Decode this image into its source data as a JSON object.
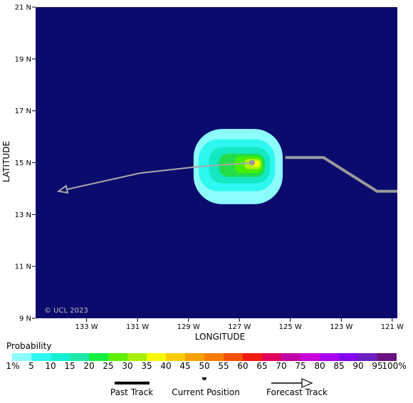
{
  "map": {
    "lat_ticks": [
      "21 N",
      "19 N",
      "17 N",
      "15 N",
      "13 N",
      "11 N",
      "9 N"
    ],
    "lon_ticks": [
      "133 W",
      "131 W",
      "129 W",
      "127 W",
      "125 W",
      "123 W",
      "121 W"
    ],
    "xlabel": "LONGITUDE",
    "ylabel": "LATITUDE",
    "credit": "© UCL 2023",
    "background_color": "#0b0b6e",
    "lon_range": [
      -135,
      -120.8
    ],
    "lat_range": [
      9,
      21
    ],
    "past_track": [
      [
        -125.2,
        15.2
      ],
      [
        -123.7,
        15.2
      ],
      [
        -121.6,
        13.9
      ],
      [
        -120.8,
        13.9
      ]
    ],
    "current_position": [
      -126.5,
      15.0
    ],
    "forecast_track": [
      [
        -126.5,
        15.0
      ],
      [
        -128.6,
        14.85
      ],
      [
        -130.9,
        14.6
      ],
      [
        -134.1,
        13.9
      ]
    ],
    "probability_field": [
      {
        "level": 1,
        "color": "#8cfcfc",
        "lon_min": -128.8,
        "lon_max": -125.3,
        "lat_min": 13.4,
        "lat_max": 16.3
      },
      {
        "level": 5,
        "color": "#2ef7f0",
        "lon_min": -128.6,
        "lon_max": -125.6,
        "lat_min": 13.9,
        "lat_max": 15.9
      },
      {
        "level": 10,
        "color": "#14e8c3",
        "lon_min": -128.2,
        "lon_max": -125.8,
        "lat_min": 14.2,
        "lat_max": 15.6
      },
      {
        "level": 20,
        "color": "#22dc4c",
        "lon_min": -127.8,
        "lon_max": -126.0,
        "lat_min": 14.45,
        "lat_max": 15.35
      },
      {
        "level": 25,
        "color": "#44ee00",
        "lon_min": -127.2,
        "lon_max": -126.1,
        "lat_min": 14.6,
        "lat_max": 15.25
      },
      {
        "level": 30,
        "color": "#aaf200",
        "lon_min": -126.8,
        "lon_max": -126.15,
        "lat_min": 14.75,
        "lat_max": 15.15
      },
      {
        "level": 35,
        "color": "#f8f800",
        "lon_min": -126.55,
        "lon_max": -126.2,
        "lat_min": 14.85,
        "lat_max": 15.08
      }
    ]
  },
  "legend": {
    "title": "Probability",
    "labels": [
      "1%",
      "5",
      "10",
      "15",
      "20",
      "25",
      "30",
      "35",
      "40",
      "45",
      "50",
      "55",
      "60",
      "65",
      "70",
      "75",
      "80",
      "85",
      "90",
      "95",
      "100%"
    ],
    "colors": [
      "#8cfcfc",
      "#2ef7f0",
      "#14f0d6",
      "#1ee8a8",
      "#14ee40",
      "#5cf000",
      "#a6f000",
      "#f8f800",
      "#f8cc00",
      "#f8a000",
      "#f87c00",
      "#f45000",
      "#f01c10",
      "#e0005c",
      "#c000a8",
      "#c800d8",
      "#a800f0",
      "#8400f0",
      "#6c20c0",
      "#6a1080"
    ],
    "past_track_label": "Past Track",
    "current_position_label": "Current Position",
    "forecast_track_label": "Forecast Track"
  }
}
